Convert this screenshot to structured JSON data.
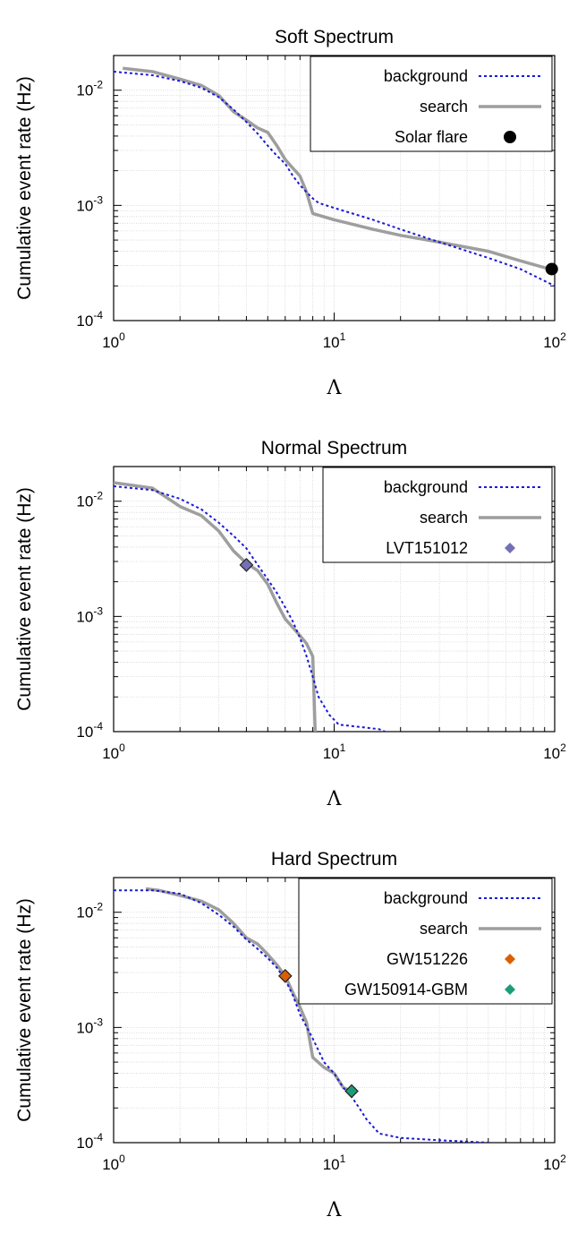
{
  "chart_data": [
    {
      "type": "line",
      "title": "Soft Spectrum",
      "xlabel": "Λ",
      "ylabel": "Cumulative event rate (Hz)",
      "xscale": "log",
      "yscale": "log",
      "xlim": [
        1,
        100
      ],
      "ylim": [
        0.0001,
        0.02
      ],
      "x_ticks": [
        {
          "base": "10",
          "exp": "0"
        },
        {
          "base": "10",
          "exp": "1"
        },
        {
          "base": "10",
          "exp": "2"
        }
      ],
      "y_ticks": [
        {
          "base": "10",
          "exp": "-2"
        },
        {
          "base": "10",
          "exp": "-3"
        },
        {
          "base": "10",
          "exp": "-4"
        }
      ],
      "grid": true,
      "legend_position": "top-right",
      "series": [
        {
          "name": "background",
          "style": "dotted",
          "color": "#1a1ad8",
          "x": [
            1.0,
            1.5,
            2.0,
            2.5,
            3.0,
            3.5,
            4.0,
            4.5,
            5.0,
            5.5,
            6.0,
            6.5,
            7.0,
            7.5,
            8.0,
            8.5,
            10,
            15,
            20,
            30,
            50,
            70,
            100
          ],
          "y": [
            0.0145,
            0.0135,
            0.012,
            0.0105,
            0.0087,
            0.0068,
            0.0053,
            0.0042,
            0.0033,
            0.0027,
            0.0023,
            0.0018,
            0.0015,
            0.0013,
            0.00115,
            0.00105,
            0.00095,
            0.00075,
            0.00062,
            0.00048,
            0.00035,
            0.00028,
            0.0002
          ]
        },
        {
          "name": "search",
          "style": "solid",
          "color": "#9e9e9e",
          "x": [
            1.1,
            1.5,
            2.0,
            2.5,
            3.0,
            3.5,
            4.0,
            4.5,
            5.0,
            5.5,
            6.0,
            6.5,
            7.0,
            7.5,
            8.0,
            10,
            15,
            20,
            30,
            50,
            70,
            95
          ],
          "y": [
            0.0155,
            0.0145,
            0.0125,
            0.011,
            0.009,
            0.0065,
            0.0055,
            0.0047,
            0.0043,
            0.0033,
            0.0025,
            0.0021,
            0.0018,
            0.0013,
            0.00085,
            0.00075,
            0.00062,
            0.00055,
            0.00048,
            0.0004,
            0.00033,
            0.00028
          ]
        },
        {
          "name": "Solar flare",
          "style": "marker",
          "marker": "circle",
          "color": "#000000",
          "x": [
            97
          ],
          "y": [
            0.00028
          ]
        }
      ]
    },
    {
      "type": "line",
      "title": "Normal Spectrum",
      "xlabel": "Λ",
      "ylabel": "Cumulative event rate (Hz)",
      "xscale": "log",
      "yscale": "log",
      "xlim": [
        1,
        100
      ],
      "ylim": [
        0.0001,
        0.02
      ],
      "x_ticks": [
        {
          "base": "10",
          "exp": "0"
        },
        {
          "base": "10",
          "exp": "1"
        },
        {
          "base": "10",
          "exp": "2"
        }
      ],
      "y_ticks": [
        {
          "base": "10",
          "exp": "-2"
        },
        {
          "base": "10",
          "exp": "-3"
        },
        {
          "base": "10",
          "exp": "-4"
        }
      ],
      "grid": true,
      "legend_position": "top-right",
      "series": [
        {
          "name": "background",
          "style": "dotted",
          "color": "#1a1ad8",
          "x": [
            1.0,
            1.5,
            2.0,
            2.5,
            3.0,
            3.5,
            4.0,
            4.5,
            5.0,
            5.5,
            6.0,
            6.5,
            7.0,
            7.5,
            8.0,
            8.5,
            9.5,
            10.5,
            13,
            16,
            17
          ],
          "y": [
            0.0135,
            0.0125,
            0.0105,
            0.0085,
            0.0065,
            0.005,
            0.0039,
            0.0028,
            0.0021,
            0.0016,
            0.0012,
            0.0009,
            0.00065,
            0.00045,
            0.0003,
            0.0002,
            0.00014,
            0.000115,
            0.00011,
            0.000105,
            0.0001
          ]
        },
        {
          "name": "search",
          "style": "solid",
          "color": "#9e9e9e",
          "x": [
            1.0,
            1.5,
            2.0,
            2.5,
            3.0,
            3.5,
            4.0,
            4.5,
            5.0,
            5.5,
            6.0,
            6.5,
            7.0,
            7.5,
            8.0,
            8.2
          ],
          "y": [
            0.0145,
            0.013,
            0.009,
            0.0075,
            0.0055,
            0.0037,
            0.0029,
            0.0025,
            0.0019,
            0.0013,
            0.00095,
            0.0008,
            0.00068,
            0.00058,
            0.00045,
            0.0001
          ]
        },
        {
          "name": "LVT151012",
          "style": "marker",
          "marker": "diamond",
          "color": "#7570b3",
          "x": [
            4.0
          ],
          "y": [
            0.0028
          ]
        }
      ]
    },
    {
      "type": "line",
      "title": "Hard Spectrum",
      "xlabel": "Λ",
      "ylabel": "Cumulative event rate (Hz)",
      "xscale": "log",
      "yscale": "log",
      "xlim": [
        1,
        100
      ],
      "ylim": [
        0.0001,
        0.02
      ],
      "x_ticks": [
        {
          "base": "10",
          "exp": "0"
        },
        {
          "base": "10",
          "exp": "1"
        },
        {
          "base": "10",
          "exp": "2"
        }
      ],
      "y_ticks": [
        {
          "base": "10",
          "exp": "-2"
        },
        {
          "base": "10",
          "exp": "-3"
        },
        {
          "base": "10",
          "exp": "-4"
        }
      ],
      "grid": true,
      "legend_position": "top-right",
      "series": [
        {
          "name": "background",
          "style": "dotted",
          "color": "#1a1ad8",
          "x": [
            1.0,
            1.5,
            2.0,
            2.5,
            3.0,
            3.5,
            4.0,
            4.5,
            5.0,
            5.5,
            6.0,
            6.5,
            7.0,
            8.0,
            9.0,
            10,
            11,
            12,
            13,
            14,
            16,
            20,
            30,
            50
          ],
          "y": [
            0.0155,
            0.0155,
            0.0145,
            0.012,
            0.0095,
            0.0075,
            0.0058,
            0.0048,
            0.004,
            0.0033,
            0.0026,
            0.0019,
            0.0013,
            0.0008,
            0.0005,
            0.0004,
            0.0003,
            0.00025,
            0.0002,
            0.00016,
            0.00012,
            0.00011,
            0.000105,
            0.0001
          ]
        },
        {
          "name": "search",
          "style": "solid",
          "color": "#9e9e9e",
          "x": [
            1.4,
            1.6,
            2.0,
            2.5,
            3.0,
            3.5,
            4.0,
            4.5,
            5.0,
            5.5,
            6.0,
            6.5,
            7.0,
            7.5,
            8.0,
            9.0,
            10,
            11,
            12
          ],
          "y": [
            0.016,
            0.0155,
            0.014,
            0.0125,
            0.0105,
            0.008,
            0.006,
            0.0053,
            0.0043,
            0.0035,
            0.0028,
            0.002,
            0.0015,
            0.0011,
            0.00055,
            0.00045,
            0.0004,
            0.0003,
            0.00028
          ]
        },
        {
          "name": "GW151226",
          "style": "marker",
          "marker": "diamond",
          "color": "#d95f02",
          "x": [
            6.0
          ],
          "y": [
            0.0028
          ]
        },
        {
          "name": "GW150914-GBM",
          "style": "marker",
          "marker": "diamond",
          "color": "#1b9e77",
          "x": [
            12.0
          ],
          "y": [
            0.00028
          ]
        }
      ]
    }
  ]
}
